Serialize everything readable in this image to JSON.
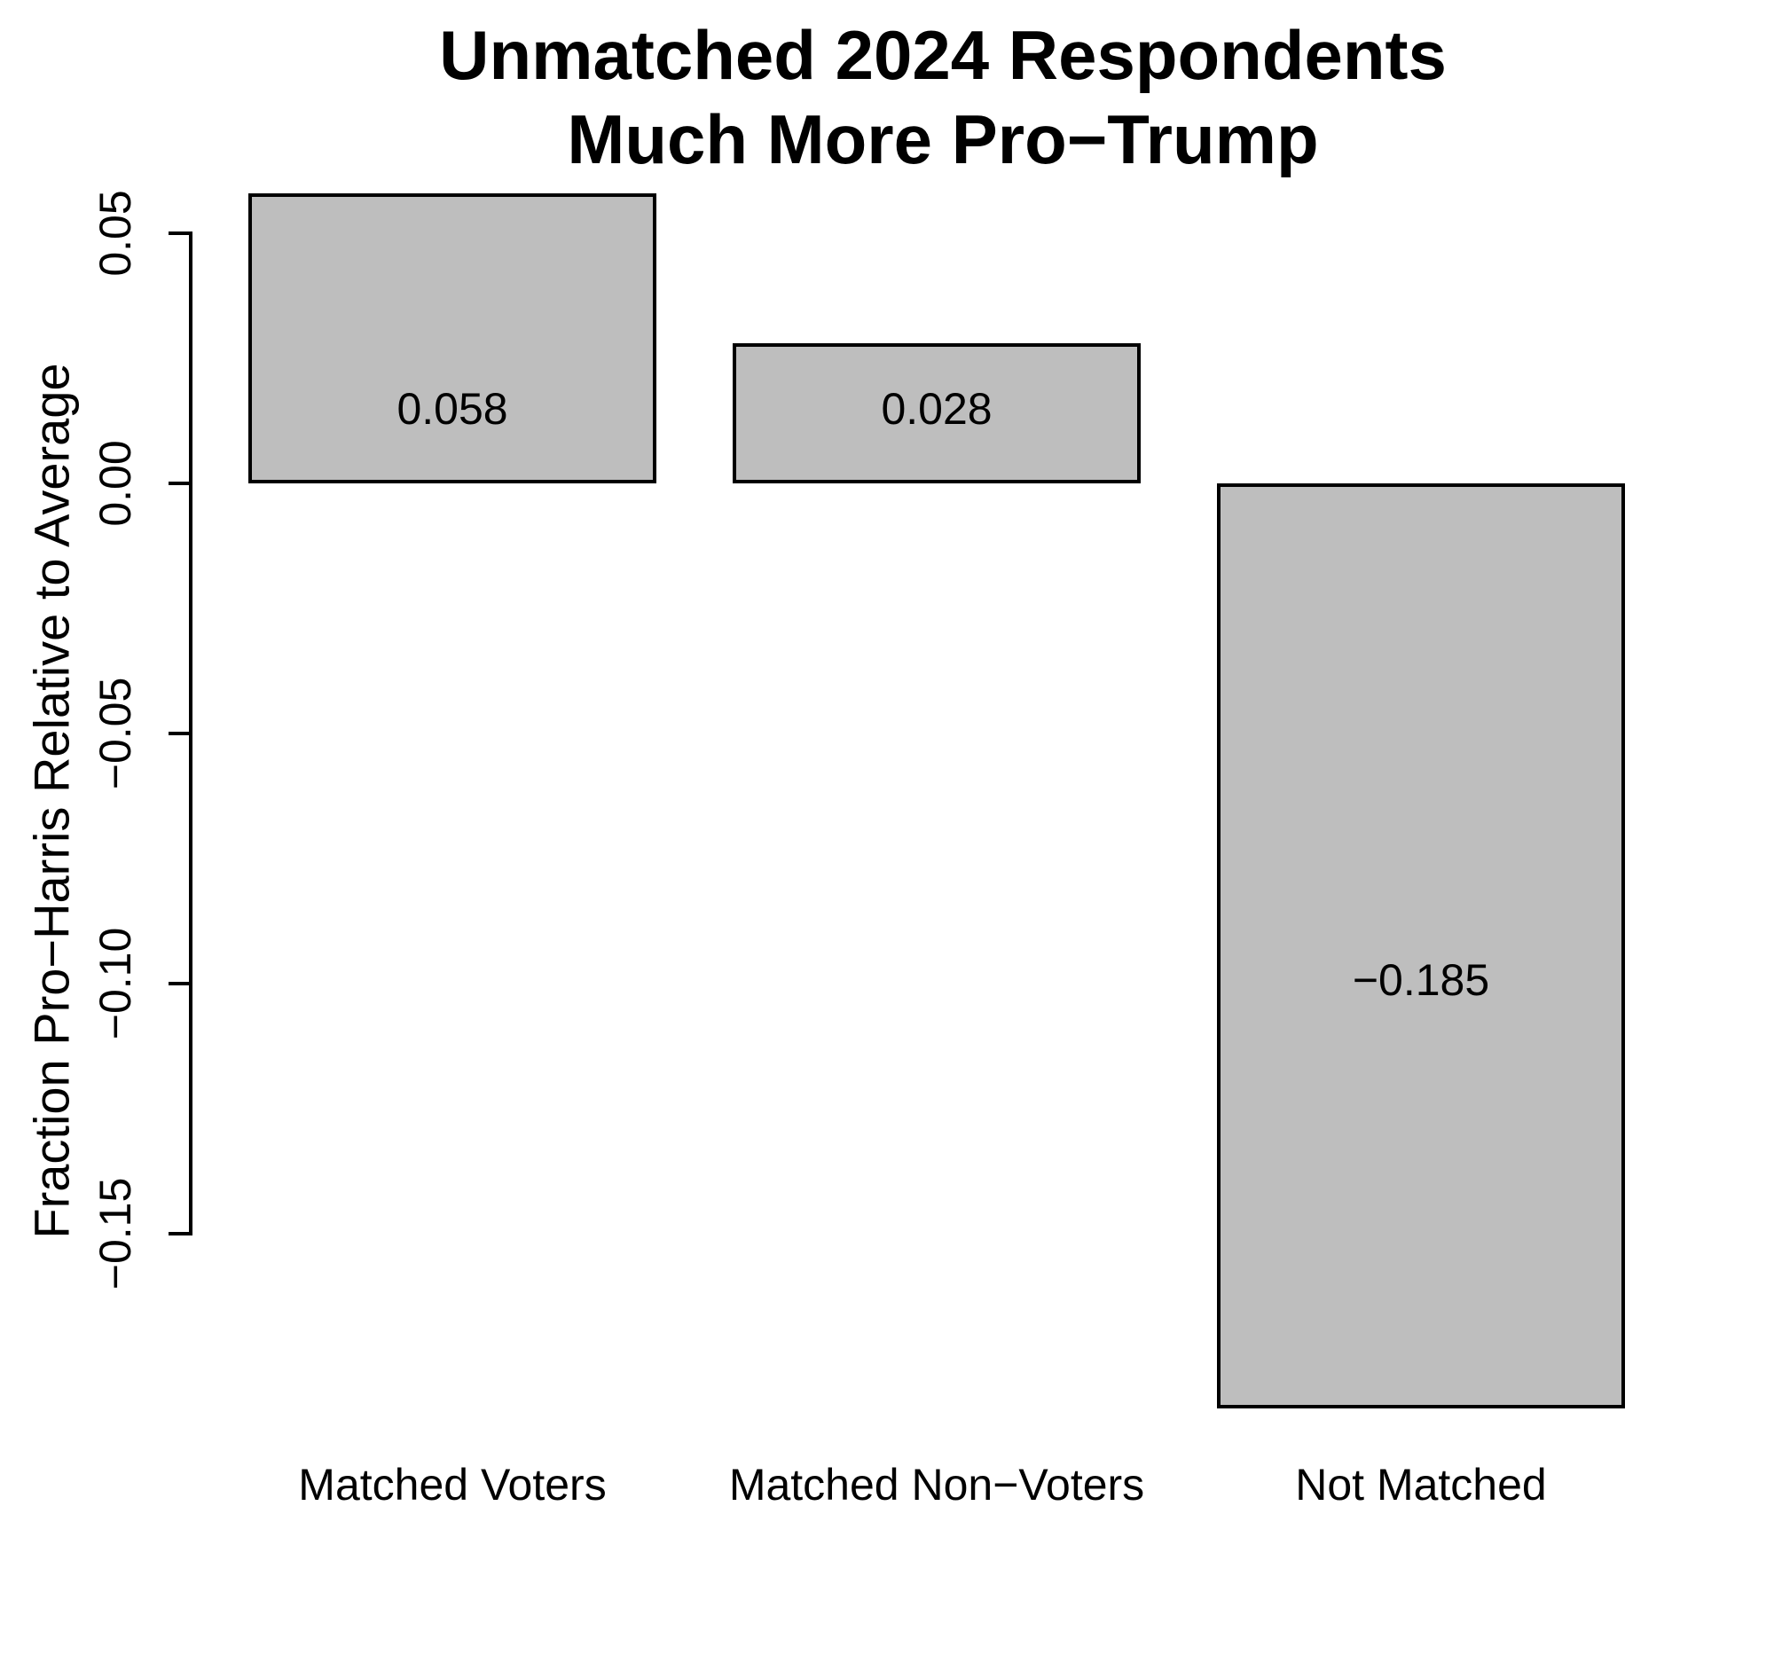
{
  "title": {
    "line1": "Unmatched 2024 Respondents",
    "line2": "Much More Pro−Trump"
  },
  "chart_data": {
    "type": "bar",
    "title": "Unmatched 2024 Respondents Much More Pro−Trump",
    "xlabel": "",
    "ylabel": "Fraction Pro−Harris Relative to Average",
    "categories": [
      "Matched Voters",
      "Matched Non−Voters",
      "Not Matched"
    ],
    "values": [
      0.058,
      0.028,
      -0.185
    ],
    "bar_labels": [
      "0.058",
      "0.028",
      "−0.185"
    ],
    "yticks": [
      {
        "value": 0.05,
        "label": "0.05"
      },
      {
        "value": 0.0,
        "label": "0.00"
      },
      {
        "value": -0.05,
        "label": "−0.05"
      },
      {
        "value": -0.1,
        "label": "−0.10"
      },
      {
        "value": -0.15,
        "label": "−0.15"
      }
    ],
    "ylim": [
      -0.2,
      0.06
    ],
    "grid": false,
    "legend": null,
    "bar_fill_color": "#bebebe",
    "bar_border_color": "#000000",
    "text_color": "#000000",
    "background_color": "#ffffff"
  }
}
